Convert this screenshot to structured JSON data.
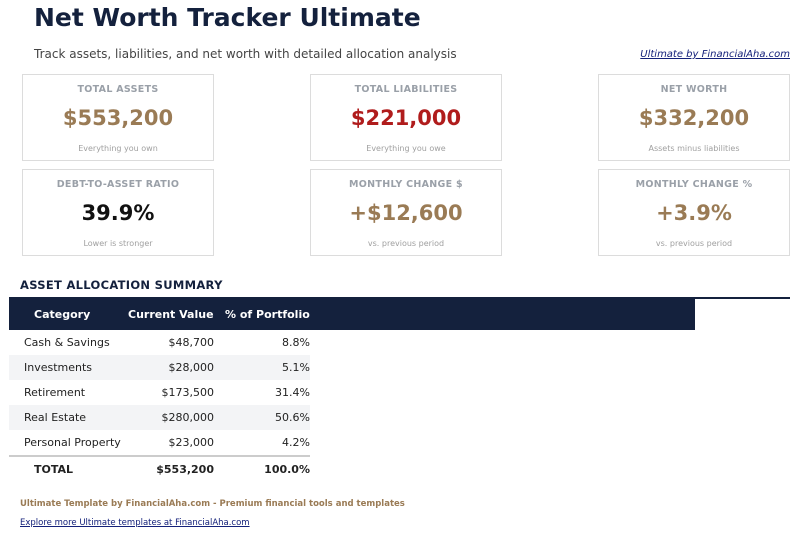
{
  "header": {
    "title": "Net Worth Tracker Ultimate",
    "subtitle": "Track assets, liabilities, and net worth with detailed allocation analysis",
    "link": "Ultimate by FinancialAha.com"
  },
  "cards": [
    {
      "label": "TOTAL ASSETS",
      "value": "$553,200",
      "note": "Everything you own"
    },
    {
      "label": "TOTAL LIABILITIES",
      "value": "$221,000",
      "note": "Everything you owe"
    },
    {
      "label": "NET WORTH",
      "value": "$332,200",
      "note": "Assets minus liabilities"
    },
    {
      "label": "DEBT-TO-ASSET RATIO",
      "value": "39.9%",
      "note": "Lower is stronger"
    },
    {
      "label": "MONTHLY CHANGE $",
      "value": "+$12,600",
      "note": "vs. previous period"
    },
    {
      "label": "MONTHLY CHANGE %",
      "value": "+3.9%",
      "note": "vs. previous period"
    }
  ],
  "section_title": "ASSET ALLOCATION SUMMARY",
  "table": {
    "columns": [
      "Category",
      "Current Value",
      "% of Portfolio"
    ],
    "rows": [
      [
        "Cash & Savings",
        "$48,700",
        "8.8%"
      ],
      [
        "Investments",
        "$28,000",
        "5.1%"
      ],
      [
        "Retirement",
        "$173,500",
        "31.4%"
      ],
      [
        "Real Estate",
        "$280,000",
        "50.6%"
      ],
      [
        "Personal Property",
        "$23,000",
        "4.2%"
      ]
    ],
    "total": [
      "TOTAL",
      "$553,200",
      "100.0%"
    ]
  },
  "footer": {
    "text": "Ultimate Template by FinancialAha.com - Premium financial tools and templates",
    "link": "Explore more Ultimate templates at FinancialAha.com"
  }
}
